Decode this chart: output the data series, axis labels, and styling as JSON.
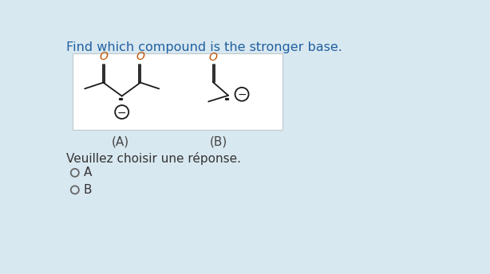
{
  "title": "Find which compound is the stronger base.",
  "title_color": "#2060a0",
  "title_fontsize": 11.5,
  "background_color": "#d8e8f0",
  "box_bg": "#ffffff",
  "box_border": "#c0c8cc",
  "label_A": "(A)",
  "label_B": "(B)",
  "prompt": "Veuillez choisir une réponse.",
  "option_A": "A",
  "option_B": "B",
  "text_color": "#333333",
  "label_color": "#444444",
  "label_fontsize": 11,
  "O_color": "#c05000",
  "bond_color": "#1a1a1a",
  "bond_lw": 1.3
}
